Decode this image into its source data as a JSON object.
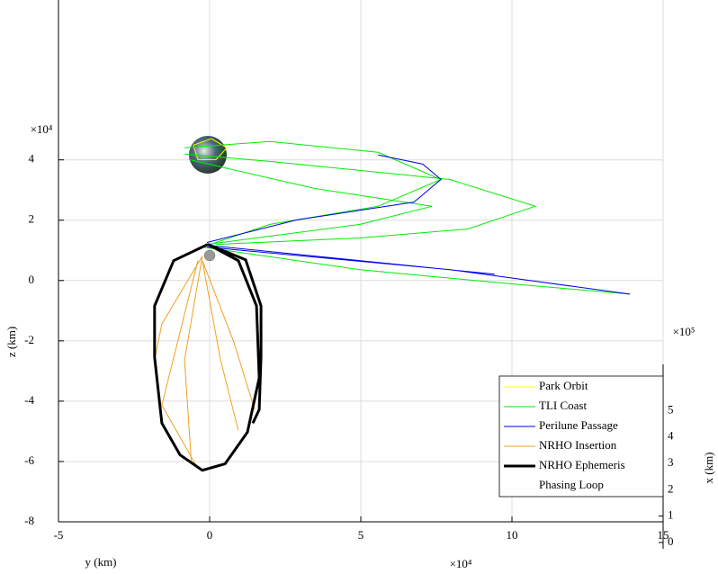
{
  "chart_data": {
    "type": "line",
    "xlabel": "y (km)",
    "ylabel": "z (km)",
    "zlabel": "x (km)",
    "x_exponent": "×10⁴",
    "y_exponent": "×10⁴",
    "z_exponent": "×10⁵",
    "xlim": [
      -5,
      15
    ],
    "xticks": [
      -5,
      0,
      5,
      10,
      15
    ],
    "ylim": [
      -8,
      9.3
    ],
    "yticks": [
      -8,
      -6,
      -4,
      -2,
      0,
      2,
      4
    ],
    "zlim": [
      0,
      6.75
    ],
    "zticks": [
      0,
      1,
      2,
      3,
      4,
      5
    ],
    "grid": true,
    "legend_loc": "lower right",
    "series": [
      {
        "name": "Park Orbit",
        "color": "#ffff00",
        "width": 1,
        "x": [
          -0.54,
          0.06,
          0.57,
          0.21,
          -0.39,
          -0.54
        ],
        "values": [
          4.49,
          4.7,
          4.4,
          4.01,
          4.01,
          4.49
        ]
      },
      {
        "name": "TLI Coast",
        "color": "#00ee00",
        "width": 1,
        "x": [
          -0.83,
          1.99,
          5.57,
          7.65,
          5.57,
          1.99,
          -0.24,
          null,
          -0.83,
          1.99,
          7.95,
          10.77,
          8.54,
          4.97,
          0.21,
          null,
          -0.68,
          3.48,
          7.35,
          4.97,
          -0.09,
          null,
          -0.24,
          4.97,
          9.73,
          13.9
        ],
        "values": [
          4.4,
          4.61,
          4.25,
          3.35,
          2.46,
          1.86,
          1.11,
          null,
          4.19,
          3.95,
          3.35,
          2.46,
          1.71,
          1.41,
          1.2,
          null,
          4.01,
          3.05,
          2.46,
          1.86,
          1.2,
          null,
          1.11,
          0.36,
          -0.09,
          -0.45
        ]
      },
      {
        "name": "Perilune Passage",
        "color": "#0000ee",
        "width": 1,
        "x": [
          -0.09,
          2.89,
          6.76,
          7.65,
          7.05,
          5.57,
          null,
          -0.09,
          7.95,
          13.9,
          null,
          -0.09,
          9.43
        ],
        "values": [
          1.26,
          2.01,
          2.6,
          3.35,
          3.86,
          4.16,
          null,
          1.11,
          0.36,
          -0.45,
          null,
          1.17,
          0.21
        ]
      },
      {
        "name": "NRHO Insertion",
        "color": "#f0a020",
        "width": 1,
        "x": [
          -0.24,
          -1.58,
          -1.82,
          null,
          -0.24,
          -0.83,
          -0.6,
          null,
          -0.24,
          0.36,
          0.95,
          null,
          -0.24,
          0.8,
          1.49,
          null,
          -0.39,
          -1.58,
          -0.39
        ],
        "values": [
          0.81,
          -1.44,
          -2.63,
          null,
          0.81,
          -2.63,
          -6.08,
          null,
          0.66,
          -2.63,
          -4.97,
          null,
          0.66,
          -2.04,
          -4.28,
          null,
          0.66,
          -4.13,
          -6.23
        ]
      },
      {
        "name": "NRHO Ephemeris",
        "color": "#000000",
        "width": 3,
        "x": [
          -0.06,
          -1.19,
          -1.82,
          -1.82,
          -1.58,
          -0.98,
          -0.24,
          0.51,
          1.25,
          1.64,
          1.55,
          0.95,
          -0.06,
          null,
          -0.06,
          1.19,
          1.7,
          1.7,
          1.64,
          1.43
        ],
        "values": [
          1.2,
          0.66,
          -0.84,
          -2.54,
          -4.73,
          -5.78,
          -6.29,
          -6.08,
          -5.03,
          -3.23,
          -0.84,
          0.66,
          1.2,
          null,
          1.2,
          0.69,
          -0.84,
          -2.54,
          -4.28,
          -4.73
        ]
      },
      {
        "name": "Phasing Loop",
        "color": "#ffffff",
        "width": 1,
        "x": [],
        "values": []
      }
    ]
  }
}
